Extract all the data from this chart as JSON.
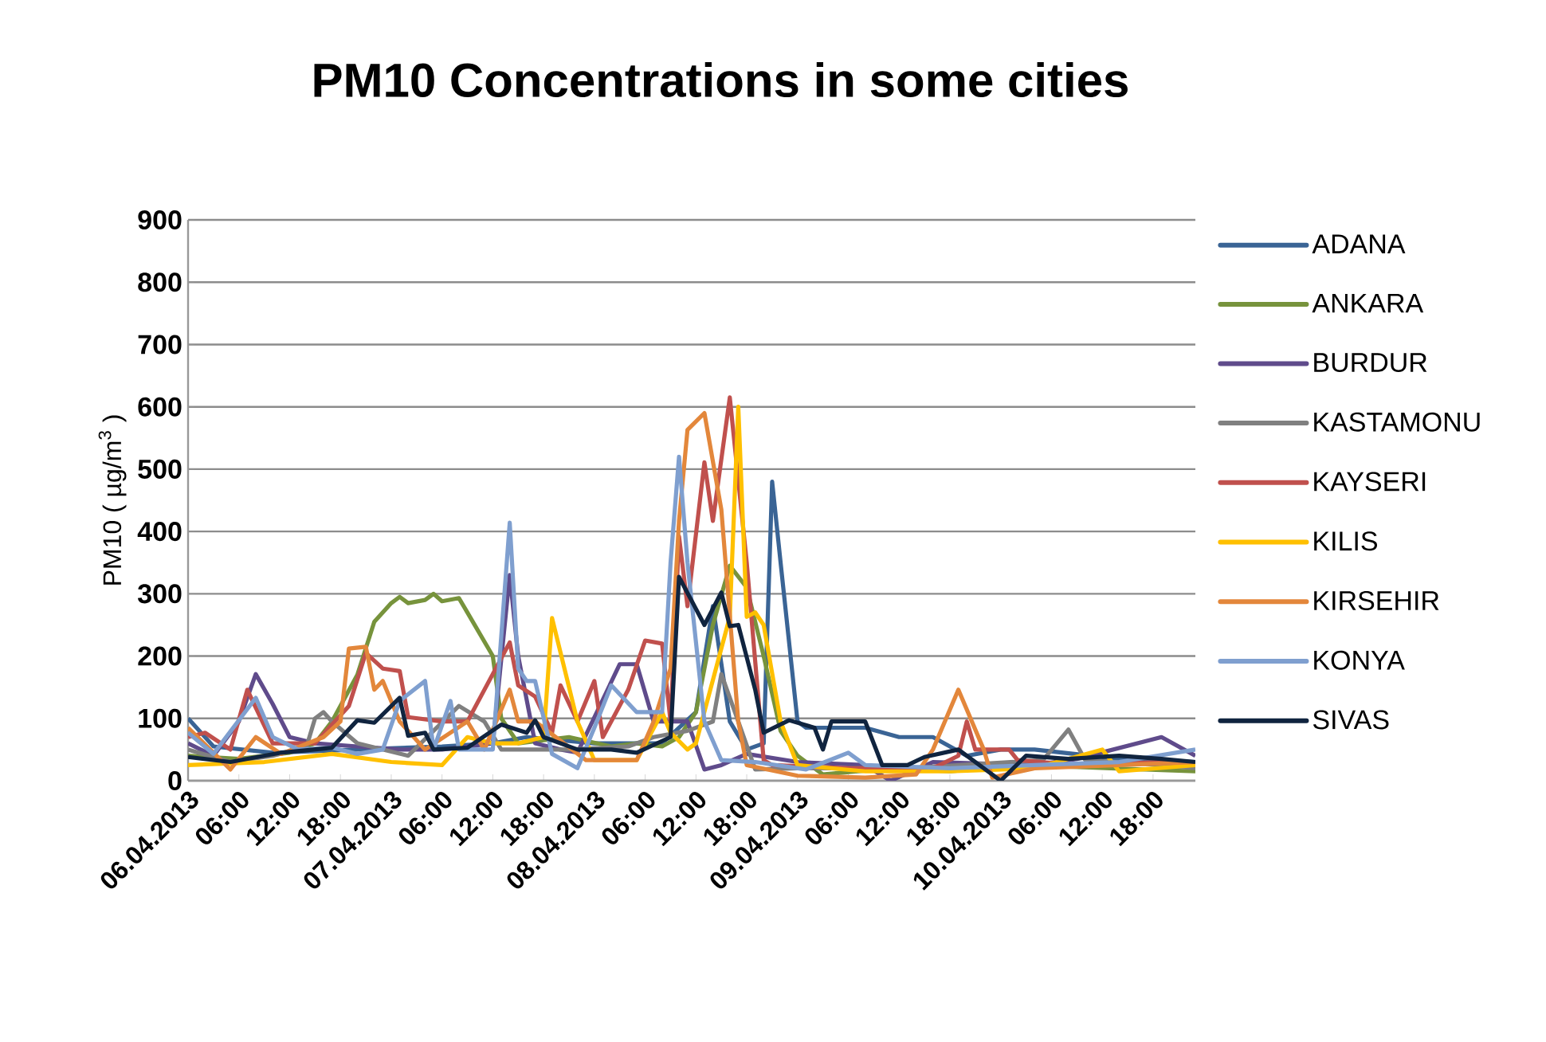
{
  "chart_data": {
    "type": "line",
    "title": "PM10 Concentrations in some cities",
    "ylabel": "PM10 ( µg/m$^{3}$ )",
    "xlim": [
      "2013-04-06T00:00",
      "2013-04-10T23:00"
    ],
    "ylim": [
      0,
      900
    ],
    "yticks": [
      0,
      100,
      200,
      300,
      400,
      500,
      600,
      700,
      800,
      900
    ],
    "xticks": [
      {
        "value": "2013-04-06T00:00",
        "label": "06.04.2013"
      },
      {
        "value": "2013-04-06T06:00",
        "label": "06:00"
      },
      {
        "value": "2013-04-06T12:00",
        "label": "12:00"
      },
      {
        "value": "2013-04-06T18:00",
        "label": "18:00"
      },
      {
        "value": "2013-04-07T00:00",
        "label": "07.04.2013"
      },
      {
        "value": "2013-04-07T06:00",
        "label": "06:00"
      },
      {
        "value": "2013-04-07T12:00",
        "label": "12:00"
      },
      {
        "value": "2013-04-07T18:00",
        "label": "18:00"
      },
      {
        "value": "2013-04-08T00:00",
        "label": "08.04.2013"
      },
      {
        "value": "2013-04-08T06:00",
        "label": "06:00"
      },
      {
        "value": "2013-04-08T12:00",
        "label": "12:00"
      },
      {
        "value": "2013-04-08T18:00",
        "label": "18:00"
      },
      {
        "value": "2013-04-09T00:00",
        "label": "09.04.2013"
      },
      {
        "value": "2013-04-09T06:00",
        "label": "06:00"
      },
      {
        "value": "2013-04-09T12:00",
        "label": "12:00"
      },
      {
        "value": "2013-04-09T18:00",
        "label": "18:00"
      },
      {
        "value": "2013-04-10T00:00",
        "label": "10.04.2013"
      },
      {
        "value": "2013-04-10T06:00",
        "label": "06:00"
      },
      {
        "value": "2013-04-10T12:00",
        "label": "12:00"
      },
      {
        "value": "2013-04-10T18:00",
        "label": "18:00"
      }
    ],
    "grid": "y",
    "legend": "right",
    "marker": "none",
    "line_style": "solid",
    "series": [
      {
        "name": "ADANA",
        "color": "#3a6495",
        "x": [
          "2013-04-06T00:00",
          "2013-04-06T03:00",
          "2013-04-06T10:00",
          "2013-04-06T20:00",
          "2013-04-07T06:00",
          "2013-04-07T12:00",
          "2013-04-07T16:00",
          "2013-04-08T00:00",
          "2013-04-08T08:00",
          "2013-04-08T12:00",
          "2013-04-08T14:00",
          "2013-04-08T16:00",
          "2013-04-08T18:00",
          "2013-04-08T20:00",
          "2013-04-08T21:00",
          "2013-04-08T22:00",
          "2013-04-09T00:00",
          "2013-04-09T01:00",
          "2013-04-09T08:00",
          "2013-04-09T12:00",
          "2013-04-09T16:00",
          "2013-04-09T20:00",
          "2013-04-10T00:00",
          "2013-04-10T04:00",
          "2013-04-10T14:00",
          "2013-04-10T23:00"
        ],
        "values": [
          100,
          55,
          45,
          50,
          55,
          60,
          70,
          60,
          60,
          110,
          280,
          95,
          50,
          60,
          480,
          350,
          95,
          85,
          85,
          70,
          70,
          40,
          50,
          50,
          35,
          30
        ]
      },
      {
        "name": "ANKARA",
        "color": "#77933c",
        "x": [
          "2013-04-06T00:00",
          "2013-04-06T06:00",
          "2013-04-06T12:00",
          "2013-04-06T15:00",
          "2013-04-06T17:00",
          "2013-04-06T20:00",
          "2013-04-06T22:00",
          "2013-04-07T00:00",
          "2013-04-07T01:00",
          "2013-04-07T02:00",
          "2013-04-07T04:00",
          "2013-04-07T05:00",
          "2013-04-07T06:00",
          "2013-04-07T08:00",
          "2013-04-07T09:00",
          "2013-04-07T12:00",
          "2013-04-07T13:00",
          "2013-04-07T15:00",
          "2013-04-07T21:00",
          "2013-04-08T02:00",
          "2013-04-08T05:00",
          "2013-04-08T08:00",
          "2013-04-08T10:00",
          "2013-04-08T12:00",
          "2013-04-08T14:00",
          "2013-04-08T16:00",
          "2013-04-08T18:00",
          "2013-04-08T20:00",
          "2013-04-08T22:00",
          "2013-04-09T00:00",
          "2013-04-09T03:00",
          "2013-04-09T11:00",
          "2013-04-09T18:00",
          "2013-04-10T03:00",
          "2013-04-10T13:00",
          "2013-04-10T23:00"
        ],
        "values": [
          40,
          35,
          45,
          60,
          95,
          170,
          255,
          285,
          295,
          285,
          290,
          300,
          288,
          293,
          270,
          200,
          100,
          60,
          70,
          55,
          60,
          55,
          70,
          110,
          250,
          345,
          310,
          200,
          80,
          40,
          10,
          20,
          15,
          25,
          20,
          15
        ]
      },
      {
        "name": "BURDUR",
        "color": "#5f4b8b",
        "x": [
          "2013-04-06T00:00",
          "2013-04-06T03:00",
          "2013-04-06T06:00",
          "2013-04-06T08:00",
          "2013-04-06T10:00",
          "2013-04-06T12:00",
          "2013-04-06T15:00",
          "2013-04-06T20:00",
          "2013-04-07T01:00",
          "2013-04-07T06:00",
          "2013-04-07T12:00",
          "2013-04-07T14:00",
          "2013-04-07T15:00",
          "2013-04-07T17:00",
          "2013-04-07T20:00",
          "2013-04-07T22:00",
          "2013-04-08T03:00",
          "2013-04-08T05:00",
          "2013-04-08T07:00",
          "2013-04-08T11:00",
          "2013-04-08T13:00",
          "2013-04-08T15:00",
          "2013-04-08T18:00",
          "2013-04-09T00:00",
          "2013-04-09T08:00",
          "2013-04-09T11:00",
          "2013-04-09T16:00",
          "2013-04-10T04:00",
          "2013-04-10T09:00",
          "2013-04-10T19:00",
          "2013-04-10T23:00"
        ],
        "values": [
          60,
          40,
          95,
          171,
          123,
          70,
          60,
          55,
          50,
          50,
          60,
          330,
          200,
          60,
          50,
          45,
          187,
          187,
          95,
          95,
          18,
          25,
          43,
          30,
          25,
          0,
          30,
          25,
          35,
          70,
          40
        ]
      },
      {
        "name": "KASTAMONU",
        "color": "#808080",
        "x": [
          "2013-04-06T00:00",
          "2013-04-06T05:00",
          "2013-04-06T10:00",
          "2013-04-06T14:00",
          "2013-04-06T15:00",
          "2013-04-06T16:00",
          "2013-04-06T17:00",
          "2013-04-06T20:00",
          "2013-04-07T02:00",
          "2013-04-07T08:00",
          "2013-04-07T11:00",
          "2013-04-07T13:00",
          "2013-04-07T21:00",
          "2013-04-08T04:00",
          "2013-04-08T07:00",
          "2013-04-08T11:00",
          "2013-04-08T14:00",
          "2013-04-08T15:00",
          "2013-04-08T17:00",
          "2013-04-08T19:00",
          "2013-04-09T00:00",
          "2013-04-09T13:00",
          "2013-04-10T05:00",
          "2013-04-10T08:00",
          "2013-04-10T10:00",
          "2013-04-10T19:00",
          "2013-04-10T23:00"
        ],
        "values": [
          50,
          30,
          40,
          55,
          100,
          110,
          95,
          60,
          40,
          120,
          95,
          50,
          50,
          55,
          70,
          80,
          95,
          171,
          95,
          18,
          20,
          20,
          33,
          82,
          33,
          25,
          20
        ]
      },
      {
        "name": "KAYSERI",
        "color": "#c0504d",
        "x": [
          "2013-04-06T00:00",
          "2013-04-06T02:00",
          "2013-04-06T05:00",
          "2013-04-06T07:00",
          "2013-04-06T10:00",
          "2013-04-06T15:00",
          "2013-04-06T19:00",
          "2013-04-06T21:00",
          "2013-04-06T23:00",
          "2013-04-07T01:00",
          "2013-04-07T02:00",
          "2013-04-07T06:00",
          "2013-04-07T09:00",
          "2013-04-07T14:00",
          "2013-04-07T15:00",
          "2013-04-07T17:00",
          "2013-04-07T19:00",
          "2013-04-07T20:00",
          "2013-04-07T22:00",
          "2013-04-08T00:00",
          "2013-04-08T01:00",
          "2013-04-08T04:00",
          "2013-04-08T06:00",
          "2013-04-08T08:00",
          "2013-04-08T09:00",
          "2013-04-08T10:00",
          "2013-04-08T11:00",
          "2013-04-08T13:00",
          "2013-04-08T14:00",
          "2013-04-08T16:00",
          "2013-04-08T18:00",
          "2013-04-08T20:00",
          "2013-04-08T21:00",
          "2013-04-09T06:00",
          "2013-04-09T16:00",
          "2013-04-09T19:00",
          "2013-04-09T20:00",
          "2013-04-09T21:00",
          "2013-04-10T01:00",
          "2013-04-10T02:00",
          "2013-04-10T09:00",
          "2013-04-10T19:00",
          "2013-04-10T23:00"
        ],
        "values": [
          70,
          77,
          50,
          146,
          60,
          60,
          120,
          205,
          180,
          176,
          102,
          95,
          95,
          222,
          153,
          135,
          77,
          153,
          95,
          160,
          70,
          146,
          225,
          220,
          95,
          392,
          280,
          511,
          417,
          615,
          350,
          33,
          25,
          20,
          20,
          40,
          95,
          50,
          50,
          33,
          25,
          30,
          30
        ]
      },
      {
        "name": "KILIS",
        "color": "#ffc000",
        "x": [
          "2013-04-06T00:00",
          "2013-04-06T09:00",
          "2013-04-06T17:00",
          "2013-04-07T00:00",
          "2013-04-07T06:00",
          "2013-04-07T09:00",
          "2013-04-07T12:00",
          "2013-04-07T15:00",
          "2013-04-07T18:00",
          "2013-04-07T19:00",
          "2013-04-07T22:00",
          "2013-04-08T00:00",
          "2013-04-08T05:00",
          "2013-04-08T08:00",
          "2013-04-08T09:00",
          "2013-04-08T11:00",
          "2013-04-08T12:00",
          "2013-04-08T16:00",
          "2013-04-08T17:00",
          "2013-04-08T18:00",
          "2013-04-08T19:00",
          "2013-04-08T20:00",
          "2013-04-08T22:00",
          "2013-04-09T00:00",
          "2013-04-09T08:00",
          "2013-04-09T18:00",
          "2013-04-10T04:00",
          "2013-04-10T12:00",
          "2013-04-10T14:00",
          "2013-04-10T23:00"
        ],
        "values": [
          25,
          30,
          43,
          30,
          25,
          70,
          60,
          60,
          70,
          261,
          95,
          33,
          33,
          110,
          77,
          50,
          60,
          263,
          600,
          263,
          270,
          250,
          95,
          25,
          15,
          15,
          20,
          50,
          15,
          25
        ]
      },
      {
        "name": "KIRSEHIR",
        "color": "#e3873b",
        "x": [
          "2013-04-06T00:00",
          "2013-04-06T05:00",
          "2013-04-06T08:00",
          "2013-04-06T11:00",
          "2013-04-06T16:00",
          "2013-04-06T18:00",
          "2013-04-06T19:00",
          "2013-04-06T21:00",
          "2013-04-06T22:00",
          "2013-04-06T23:00",
          "2013-04-07T01:00",
          "2013-04-07T04:00",
          "2013-04-07T09:00",
          "2013-04-07T11:00",
          "2013-04-07T14:00",
          "2013-04-07T15:00",
          "2013-04-07T17:00",
          "2013-04-07T23:00",
          "2013-04-08T05:00",
          "2013-04-08T07:00",
          "2013-04-08T09:00",
          "2013-04-08T10:00",
          "2013-04-08T11:00",
          "2013-04-08T13:00",
          "2013-04-08T15:00",
          "2013-04-08T17:00",
          "2013-04-08T18:00",
          "2013-04-09T00:00",
          "2013-04-09T08:00",
          "2013-04-09T14:00",
          "2013-04-09T16:00",
          "2013-04-09T19:00",
          "2013-04-09T22:00",
          "2013-04-09T23:00",
          "2013-04-10T04:00",
          "2013-04-10T14:00",
          "2013-04-10T23:00"
        ],
        "values": [
          85,
          18,
          70,
          43,
          70,
          95,
          212,
          215,
          146,
          160,
          95,
          50,
          95,
          50,
          146,
          95,
          95,
          33,
          33,
          95,
          180,
          417,
          563,
          590,
          435,
          95,
          25,
          8,
          5,
          10,
          50,
          146,
          50,
          5,
          20,
          25,
          30
        ]
      },
      {
        "name": "KONYA",
        "color": "#7f9fcf",
        "x": [
          "2013-04-06T00:00",
          "2013-04-06T03:00",
          "2013-04-06T08:00",
          "2013-04-06T10:00",
          "2013-04-06T13:00",
          "2013-04-06T17:00",
          "2013-04-06T20:00",
          "2013-04-06T23:00",
          "2013-04-07T01:00",
          "2013-04-07T04:00",
          "2013-04-07T05:00",
          "2013-04-07T07:00",
          "2013-04-07T08:00",
          "2013-04-07T12:00",
          "2013-04-07T14:00",
          "2013-04-07T15:00",
          "2013-04-07T16:00",
          "2013-04-07T17:00",
          "2013-04-07T19:00",
          "2013-04-07T22:00",
          "2013-04-08T00:00",
          "2013-04-08T02:00",
          "2013-04-08T05:00",
          "2013-04-08T08:00",
          "2013-04-08T09:00",
          "2013-04-08T10:00",
          "2013-04-08T11:00",
          "2013-04-08T13:00",
          "2013-04-08T15:00",
          "2013-04-08T19:00",
          "2013-04-09T01:00",
          "2013-04-09T06:00",
          "2013-04-09T08:00",
          "2013-04-09T18:00",
          "2013-04-10T04:00",
          "2013-04-10T14:00",
          "2013-04-10T23:00"
        ],
        "values": [
          77,
          43,
          133,
          70,
          50,
          53,
          43,
          50,
          128,
          160,
          50,
          128,
          50,
          50,
          414,
          180,
          160,
          160,
          43,
          20,
          85,
          153,
          110,
          110,
          350,
          520,
          350,
          95,
          33,
          30,
          18,
          45,
          25,
          20,
          25,
          30,
          50
        ]
      },
      {
        "name": "SIVAS",
        "color": "#10243f",
        "x": [
          "2013-04-06T00:00",
          "2013-04-06T05:00",
          "2013-04-06T11:00",
          "2013-04-06T17:00",
          "2013-04-06T20:00",
          "2013-04-06T22:00",
          "2013-04-07T01:00",
          "2013-04-07T02:00",
          "2013-04-07T04:00",
          "2013-04-07T05:00",
          "2013-04-07T09:00",
          "2013-04-07T13:00",
          "2013-04-07T16:00",
          "2013-04-07T17:00",
          "2013-04-07T18:00",
          "2013-04-07T22:00",
          "2013-04-08T02:00",
          "2013-04-08T05:00",
          "2013-04-08T09:00",
          "2013-04-08T10:00",
          "2013-04-08T13:00",
          "2013-04-08T15:00",
          "2013-04-08T16:00",
          "2013-04-08T17:00",
          "2013-04-08T19:00",
          "2013-04-08T20:00",
          "2013-04-08T23:00",
          "2013-04-09T02:00",
          "2013-04-09T03:00",
          "2013-04-09T04:00",
          "2013-04-09T08:00",
          "2013-04-09T10:00",
          "2013-04-09T13:00",
          "2013-04-09T15:00",
          "2013-04-09T19:00",
          "2013-04-10T00:00",
          "2013-04-10T03:00",
          "2013-04-10T08:00",
          "2013-04-10T14:00",
          "2013-04-10T19:00",
          "2013-04-10T23:00"
        ],
        "values": [
          38,
          30,
          45,
          53,
          97,
          93,
          133,
          72,
          77,
          50,
          53,
          90,
          77,
          97,
          70,
          50,
          50,
          45,
          70,
          327,
          250,
          302,
          248,
          250,
          146,
          77,
          97,
          85,
          50,
          95,
          95,
          25,
          25,
          38,
          50,
          0,
          40,
          35,
          40,
          35,
          30
        ]
      }
    ]
  }
}
